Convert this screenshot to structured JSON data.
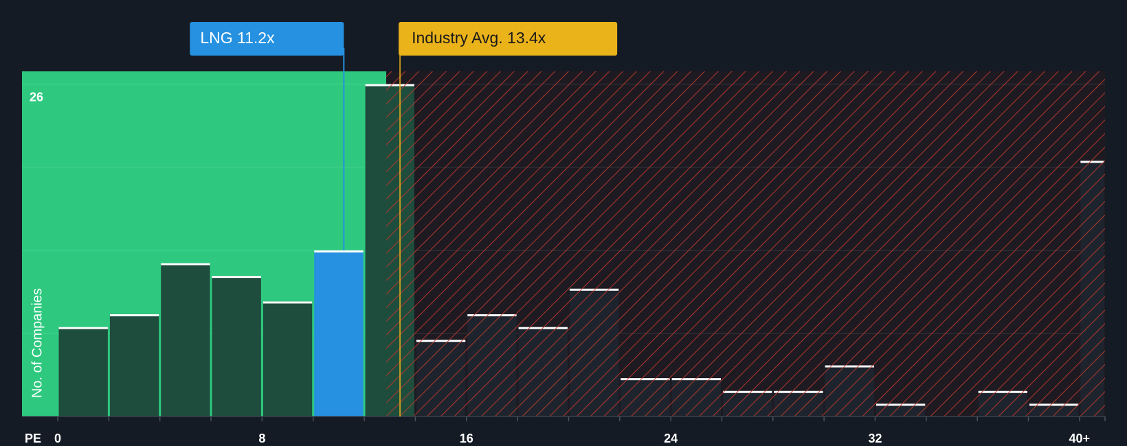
{
  "chart_data": {
    "type": "histogram",
    "bins": [
      0,
      2,
      4,
      6,
      8,
      10,
      12,
      14,
      16,
      18,
      20,
      22,
      24,
      26,
      28,
      30,
      32,
      34,
      36,
      38,
      40,
      41
    ],
    "values": [
      7,
      8,
      12,
      11,
      9,
      13,
      26,
      6,
      8,
      7,
      10,
      3,
      3,
      2,
      2,
      4,
      1,
      0,
      2,
      1,
      20
    ],
    "xlim": [
      -1.4,
      41
    ],
    "xticks": [
      0,
      8,
      16,
      24,
      32,
      {
        "value": 40,
        "label": "40+"
      }
    ],
    "x_axis_label": "PE",
    "ylim": [
      0,
      27
    ],
    "yticks": [
      26
    ],
    "y_gridlines": [
      6.5,
      13,
      19.5,
      26
    ],
    "y_axis_label": "No. of Companies",
    "grid": true,
    "company": {
      "label": "LNG 11.2x",
      "value": 11.2,
      "color": "#2591e0"
    },
    "industry_avg": {
      "label": "Industry Avg. 13.4x",
      "value": 13.4,
      "color": "#ebb31a"
    },
    "colors": {
      "fair_region": "#2ec97f",
      "expensive_hatch": "#c0392b",
      "bar_fair": "#1e4c3d",
      "bar_expensive": "#1e242e",
      "cap": "#ffffff"
    }
  }
}
